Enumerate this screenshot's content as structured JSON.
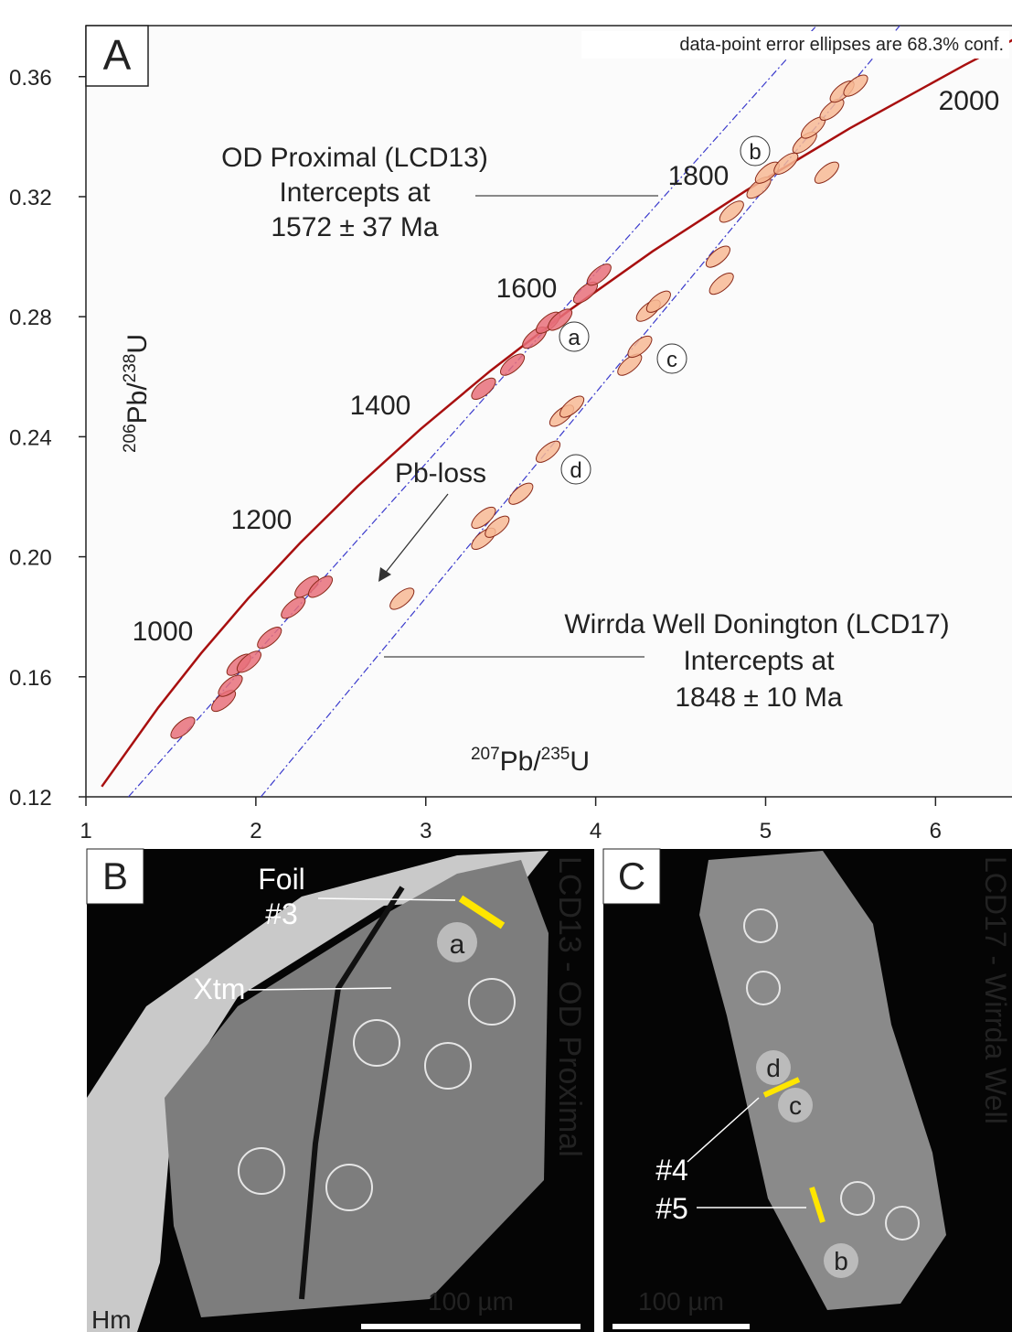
{
  "chart_data": {
    "type": "concordia",
    "panel_label": "A",
    "note": "data-point error ellipses are 68.3% conf.",
    "xlabel": [
      "207",
      "Pb/",
      "235",
      "U"
    ],
    "ylabel": [
      "206",
      "Pb/",
      "238",
      "U"
    ],
    "xlim": [
      1,
      6.45
    ],
    "ylim": [
      0.12,
      0.377
    ],
    "xticks": [
      1,
      2,
      3,
      4,
      5,
      6
    ],
    "yticks": [
      0.12,
      0.16,
      {
        "value": 0.2,
        "label": "0.20"
      },
      0.24,
      0.28,
      0.32,
      0.36
    ],
    "concordia": {
      "color": "#a80f0f",
      "x": [
        1.093,
        1.4263,
        1.6774,
        1.9546,
        2.2603,
        2.5976,
        2.97,
        3.381,
        3.834,
        4.335,
        4.887,
        5.496,
        6.169,
        6.457
      ],
      "y": [
        0.1234,
        0.1498,
        0.1678,
        0.1861,
        0.2046,
        0.2234,
        0.2426,
        0.262,
        0.2817,
        0.3018,
        0.3221,
        0.3428,
        0.3638,
        0.3723
      ]
    },
    "age_labels": [
      "1000",
      "1200",
      "1400",
      "1600",
      "1800",
      "2000"
    ],
    "discordia": [
      {
        "color": "#3a3acc",
        "x": [
          1.25,
          5.3
        ],
        "y": [
          0.12,
          0.377
        ]
      },
      {
        "color": "#3a3acc",
        "x": [
          2.03,
          5.79
        ],
        "y": [
          0.12,
          0.377
        ]
      }
    ],
    "ellipses": [
      {
        "color": "#e8707a",
        "x": [
          1.57,
          1.81,
          1.85,
          1.9,
          1.96,
          2.08,
          2.22,
          2.3,
          2.38,
          3.34,
          3.51,
          3.64,
          3.72,
          3.79,
          3.94,
          4.02
        ],
        "y": [
          0.143,
          0.152,
          0.157,
          0.164,
          0.165,
          0.173,
          0.183,
          0.19,
          0.19,
          0.256,
          0.264,
          0.273,
          0.278,
          0.279,
          0.288,
          0.294
        ]
      },
      {
        "color": "#f7b894",
        "x": [
          2.86,
          3.34,
          3.34,
          3.42,
          3.56,
          3.72,
          3.8,
          3.86,
          4.2,
          4.26,
          4.31,
          4.37,
          4.72,
          4.74,
          4.8,
          4.96,
          5.01,
          5.12,
          5.23,
          5.28,
          5.36,
          5.39,
          5.45,
          5.53
        ],
        "y": [
          0.186,
          0.206,
          0.213,
          0.21,
          0.221,
          0.235,
          0.247,
          0.25,
          0.264,
          0.27,
          0.282,
          0.285,
          0.3,
          0.291,
          0.315,
          0.323,
          0.328,
          0.331,
          0.338,
          0.343,
          0.328,
          0.349,
          0.355,
          0.357
        ]
      }
    ],
    "annotations": {
      "lcd13": [
        "OD Proximal (LCD13)",
        "Intercepts at",
        "1572 ± 37 Ma"
      ],
      "lcd17": [
        "Wirrda Well Donington (LCD17)",
        "Intercepts at",
        "1848 ± 10 Ma"
      ],
      "pb_loss": "Pb-loss",
      "spots": [
        "a",
        "b",
        "c",
        "d"
      ]
    }
  },
  "panel_b": {
    "label": "B",
    "foil": [
      "Foil",
      "#3"
    ],
    "xtm": "Xtm",
    "spot": "a",
    "title": "LCD13 - OD Proximal",
    "scale": "100 µm",
    "hm": "Hm"
  },
  "panel_c": {
    "label": "C",
    "spots": [
      "d",
      "c",
      "b"
    ],
    "foils": [
      "#4",
      "#5"
    ],
    "title": "LCD17 - Wirrda Well",
    "scale": "100 µm"
  }
}
